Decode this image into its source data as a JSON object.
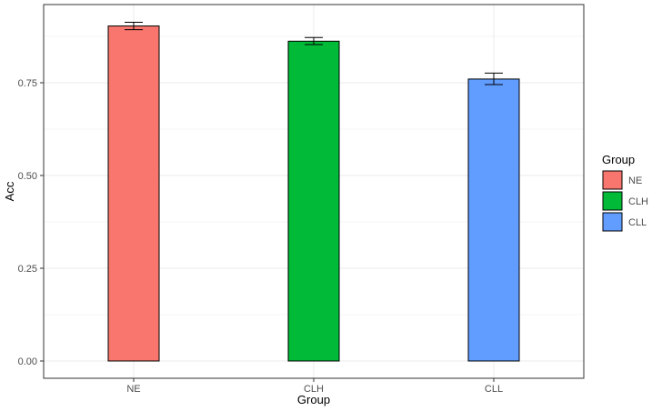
{
  "chart_data": {
    "type": "bar",
    "categories": [
      "NE",
      "CLH",
      "CLL"
    ],
    "values": [
      0.903,
      0.862,
      0.76
    ],
    "error_bars": [
      {
        "low": 0.893,
        "high": 0.913
      },
      {
        "low": 0.853,
        "high": 0.872
      },
      {
        "low": 0.745,
        "high": 0.776
      }
    ],
    "colors": [
      "#F8766D",
      "#00BA38",
      "#619CFF"
    ],
    "xlabel": "Group",
    "ylabel": "Acc",
    "ylim": [
      0,
      0.945
    ],
    "yticks": [
      0,
      0.25,
      0.5,
      0.75
    ],
    "ytick_labels": [
      "0.00",
      "0.25",
      "0.50",
      "0.75"
    ],
    "grid": true,
    "legend": {
      "title": "Group",
      "position": "right",
      "entries": [
        "NE",
        "CLH",
        "CLL"
      ]
    }
  }
}
